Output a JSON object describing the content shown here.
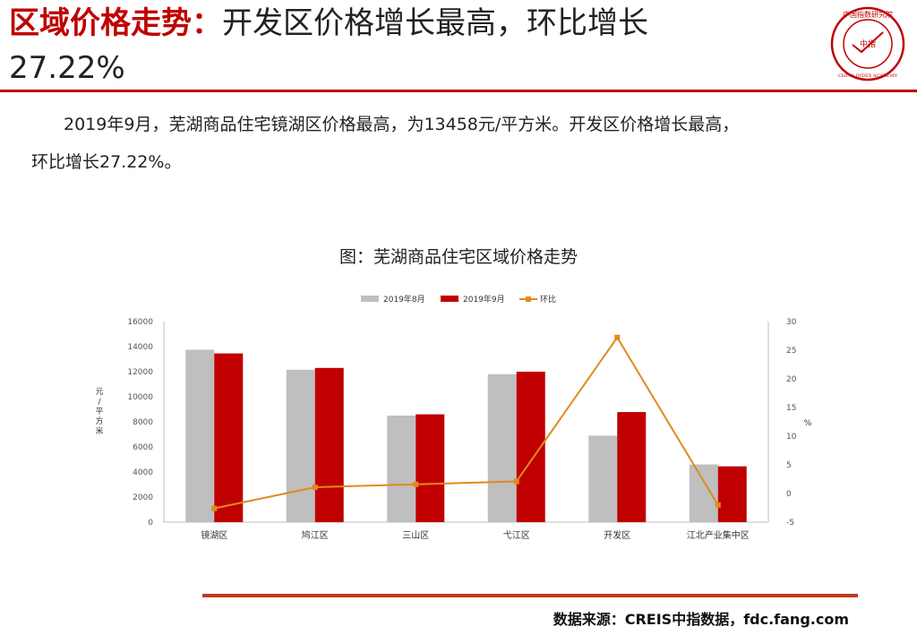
{
  "header": {
    "title_highlight": "区域价格走势：",
    "title_rest": "开发区价格增长最高，环比增长",
    "title_line2": "27.22%",
    "logo_text": "中国指数研究院",
    "logo_text_en": "CHINA INDEX ACADEMY",
    "logo_center": "中指"
  },
  "summary": {
    "text_line1": "2019年9月，芜湖商品住宅镜湖区价格最高，为13458元/平方米。开发区价格增长最高，",
    "text_line2": "环比增长27.22%。"
  },
  "chart_title": "图：芜湖商品住宅区域价格走势",
  "footer": {
    "source": "数据来源：CREIS中指数据，fdc.fang.com"
  },
  "colors": {
    "accent": "#c00000",
    "series_aug": "#bfbfbf",
    "series_sep": "#c00000",
    "series_mom": "#e08a1e"
  },
  "chart_data": {
    "type": "bar",
    "categories": [
      "镜湖区",
      "鸠江区",
      "三山区",
      "弋江区",
      "开发区",
      "江北产业集中区"
    ],
    "series": [
      {
        "name": "2019年8月",
        "type": "bar",
        "axis": "left",
        "values": [
          13750,
          12150,
          8500,
          11800,
          6900,
          4600
        ]
      },
      {
        "name": "2019年9月",
        "type": "bar",
        "axis": "left",
        "values": [
          13458,
          12300,
          8600,
          12000,
          8780,
          4450
        ]
      },
      {
        "name": "环比",
        "type": "line",
        "axis": "right",
        "values": [
          -2.6,
          1.1,
          1.6,
          2.1,
          27.22,
          -2.0
        ]
      }
    ],
    "ylabel": "元/平方米",
    "ylim": [
      0,
      16000
    ],
    "yticks": [
      "0",
      "2000",
      "4000",
      "6000",
      "8000",
      "10000",
      "12000",
      "14000",
      "16000"
    ],
    "y2label": "%",
    "y2lim": [
      -5,
      30
    ],
    "y2ticks": [
      "-5",
      "0",
      "5",
      "10",
      "15",
      "20",
      "25",
      "30"
    ],
    "legend_position": "top-center",
    "grid": false
  }
}
